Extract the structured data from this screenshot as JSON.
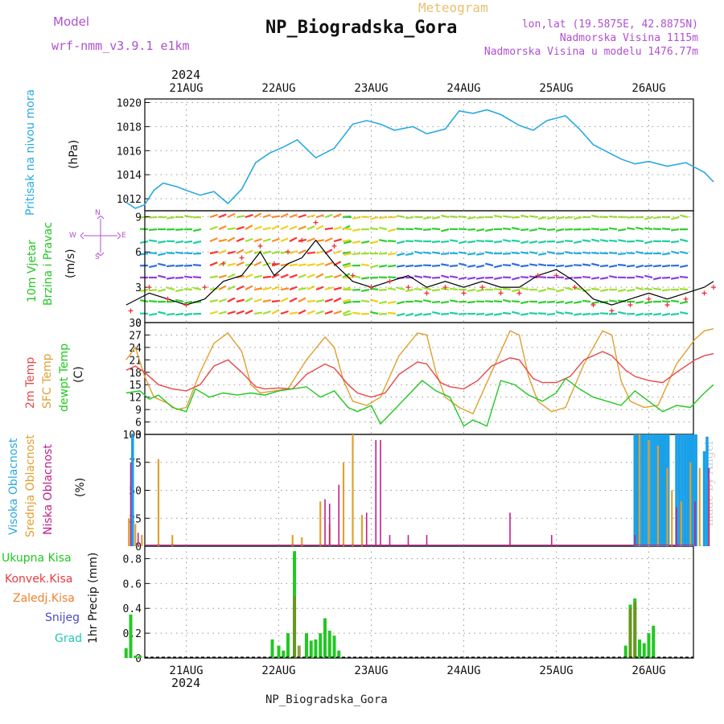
{
  "header": {
    "model_label": "Model",
    "model_name": "wrf-nmm_v3.9.1 e1km",
    "meteogram_label": "Meteogram",
    "station_title": "NP_Biogradska_Gora",
    "lonlat": "lon,lat (19.5875E, 42.8875N)",
    "elevation": "Nadmorska Visina 1115m",
    "model_elevation": "Nadmorska Visina u modelu 1476.77m",
    "footer_title": "NP_Biogradska_Gora",
    "watermark": "made by Angel",
    "year_top": "2024",
    "year_bottom": "2024"
  },
  "colors": {
    "pressure": "#2aa9e0",
    "temp2m": "#e84848",
    "sfc_temp": "#e0a030",
    "dewpt": "#22c822",
    "high_cloud": "#1aa0e8",
    "mid_cloud": "#e0a030",
    "low_cloud": "#c0208a",
    "total_precip": "#22c822",
    "conv_precip": "#e83c3c",
    "frozen_precip": "#f08030",
    "snow": "#4a4ad0",
    "hail": "#22c8b0",
    "wind_speed_line": "#000000",
    "wind_gust": "#ee3030",
    "wind_dir_label": "#b050d0"
  },
  "days": [
    "21AUG",
    "22AUG",
    "23AUG",
    "24AUG",
    "25AUG",
    "26AUG"
  ],
  "panels": {
    "pressure": {
      "label": "Pritisak na nivou mora",
      "unit": "(hPa)",
      "ticks": [
        "1012",
        "1014",
        "1016",
        "1018",
        "1020"
      ]
    },
    "wind": {
      "label1": "10m Vjetar",
      "label2": "Brzina i Pravac",
      "unit": "(m/s)",
      "ticks": [
        "0",
        "3",
        "6",
        "9"
      ],
      "compass_n": "N",
      "compass_w": "W",
      "compass_e": "E",
      "compass_s": "S"
    },
    "temp": {
      "label1": "2m Temp",
      "label2": "SFC Temp",
      "label3": "dewpt Temp",
      "unit": "(C)",
      "ticks": [
        "3",
        "6",
        "9",
        "12",
        "15",
        "18",
        "21",
        "24",
        "27",
        "30"
      ]
    },
    "cloud": {
      "label1": "Visoka Oblacnost",
      "label2": "Srednja Oblacnost",
      "label3": "Niska Oblacnost",
      "unit": "(%)",
      "ticks": [
        "0",
        "25",
        "50",
        "75",
        "100"
      ]
    },
    "precip": {
      "legend_total": "Ukupna Kisa",
      "legend_conv": "Konvek.Kisa",
      "legend_frozen": "Zaledj.Kisa",
      "legend_snow": "Snijeg",
      "legend_hail": "Grad",
      "unit": "1hr Precip (mm)",
      "ticks": [
        "0",
        "0.2",
        "0.4",
        "0.6",
        "0.8"
      ]
    }
  },
  "chart_data": [
    {
      "type": "line",
      "title": "",
      "ylabel": "Pritisak na nivou mora (hPa)",
      "x_unit": "day offset from 21AUG 00UTC",
      "ylim": [
        1011,
        1020.3
      ],
      "series": [
        {
          "name": "Pritisak na nivou mora",
          "x": [
            -0.65,
            -0.55,
            -0.45,
            -0.35,
            -0.25,
            -0.1,
            0.0,
            0.15,
            0.3,
            0.45,
            0.6,
            0.75,
            0.9,
            1.05,
            1.2,
            1.4,
            1.6,
            1.8,
            1.95,
            2.1,
            2.25,
            2.45,
            2.6,
            2.8,
            2.95,
            3.1,
            3.25,
            3.4,
            3.6,
            3.75,
            3.9,
            4.1,
            4.25,
            4.4,
            4.55,
            4.7,
            4.85,
            5.0,
            5.2,
            5.4,
            5.6,
            5.7
          ],
          "values": [
            1011.7,
            1011.2,
            1011.5,
            1012.7,
            1013.3,
            1013.0,
            1012.7,
            1012.3,
            1012.6,
            1011.6,
            1012.8,
            1015.0,
            1015.8,
            1016.3,
            1016.9,
            1015.4,
            1016.2,
            1018.2,
            1018.5,
            1018.2,
            1017.7,
            1018.0,
            1017.4,
            1017.8,
            1019.3,
            1019.1,
            1019.4,
            1019.0,
            1018.1,
            1017.7,
            1018.5,
            1018.9,
            1017.8,
            1016.5,
            1015.9,
            1015.3,
            1014.9,
            1015.1,
            1014.7,
            1015.0,
            1014.2,
            1013.4
          ]
        }
      ]
    },
    {
      "type": "line",
      "title": "",
      "ylabel": "10m Vjetar Brzina i Pravac (m/s)",
      "ylim": [
        0,
        9.5
      ],
      "series": [
        {
          "name": "speed",
          "x": [
            -0.65,
            -0.4,
            -0.2,
            0.0,
            0.2,
            0.4,
            0.6,
            0.8,
            0.95,
            1.1,
            1.25,
            1.4,
            1.6,
            1.8,
            2.0,
            2.2,
            2.4,
            2.6,
            2.8,
            3.0,
            3.2,
            3.4,
            3.6,
            3.8,
            4.0,
            4.2,
            4.4,
            4.6,
            4.8,
            5.0,
            5.2,
            5.4,
            5.6,
            5.7
          ],
          "values": [
            1.5,
            2.5,
            2.0,
            1.5,
            2.0,
            3.5,
            4.0,
            6.0,
            4.0,
            5.0,
            5.5,
            7.0,
            5.0,
            3.5,
            3.0,
            3.5,
            4.0,
            3.0,
            3.5,
            3.0,
            3.5,
            3.0,
            3.0,
            4.0,
            4.5,
            3.5,
            2.0,
            1.5,
            2.0,
            2.5,
            2.0,
            2.5,
            3.0,
            3.5
          ]
        },
        {
          "name": "gust",
          "x": [
            -0.6,
            -0.4,
            -0.2,
            0.0,
            0.2,
            0.4,
            0.6,
            0.8,
            0.95,
            1.1,
            1.25,
            1.4,
            1.6,
            1.8,
            2.0,
            2.2,
            2.4,
            2.6,
            2.8,
            3.0,
            3.2,
            3.4,
            3.6,
            3.8,
            4.0,
            4.2,
            4.4,
            4.6,
            4.8,
            5.0,
            5.2,
            5.4,
            5.6,
            5.7
          ],
          "values": [
            1.0,
            3.0,
            2.0,
            1.5,
            3.0,
            5.0,
            5.5,
            6.5,
            5.0,
            6.0,
            7.0,
            8.5,
            6.5,
            4.0,
            3.0,
            3.5,
            3.0,
            2.5,
            3.0,
            2.5,
            3.0,
            2.5,
            2.5,
            4.0,
            4.0,
            3.0,
            1.5,
            1.0,
            1.5,
            2.0,
            1.5,
            2.0,
            2.5,
            3.0
          ]
        }
      ]
    },
    {
      "type": "line",
      "title": "",
      "ylabel": "Temp (C)",
      "ylim": [
        3,
        30
      ],
      "series": [
        {
          "name": "2m Temp",
          "x": [
            -0.65,
            -0.55,
            -0.45,
            -0.3,
            -0.15,
            0.0,
            0.15,
            0.3,
            0.45,
            0.6,
            0.75,
            0.85,
            1.0,
            1.15,
            1.3,
            1.5,
            1.6,
            1.75,
            1.85,
            2.0,
            2.15,
            2.3,
            2.5,
            2.6,
            2.75,
            2.85,
            3.0,
            3.15,
            3.3,
            3.5,
            3.6,
            3.75,
            3.85,
            4.0,
            4.15,
            4.3,
            4.5,
            4.6,
            4.75,
            4.85,
            5.0,
            5.15,
            5.3,
            5.5,
            5.6,
            5.7
          ],
          "values": [
            18.5,
            19.5,
            18.0,
            15.0,
            14.0,
            13.5,
            15.0,
            19.5,
            21.0,
            18.0,
            14.5,
            14.0,
            14.2,
            14.0,
            17.5,
            20.0,
            19.0,
            15.0,
            13.0,
            12.0,
            13.0,
            17.5,
            20.5,
            20.0,
            15.5,
            14.5,
            14.0,
            16.0,
            19.5,
            21.5,
            21.0,
            16.5,
            15.5,
            15.5,
            17.0,
            21.0,
            23.0,
            22.0,
            18.5,
            17.0,
            16.0,
            15.5,
            18.0,
            21.0,
            22.0,
            22.5
          ]
        },
        {
          "name": "SFC Temp",
          "x": [
            -0.65,
            -0.55,
            -0.45,
            -0.35,
            -0.2,
            -0.1,
            0.0,
            0.15,
            0.3,
            0.45,
            0.6,
            0.7,
            0.8,
            0.95,
            1.1,
            1.3,
            1.5,
            1.6,
            1.7,
            1.8,
            1.95,
            2.1,
            2.3,
            2.5,
            2.6,
            2.7,
            2.8,
            2.95,
            3.1,
            3.3,
            3.5,
            3.6,
            3.7,
            3.8,
            3.95,
            4.1,
            4.3,
            4.5,
            4.6,
            4.7,
            4.8,
            4.95,
            5.1,
            5.3,
            5.5,
            5.6,
            5.7
          ],
          "values": [
            21.0,
            24.0,
            17.0,
            12.0,
            10.5,
            9.0,
            9.5,
            18.0,
            25.0,
            27.5,
            23.0,
            15.0,
            13.0,
            13.5,
            14.0,
            21.0,
            26.5,
            24.0,
            16.0,
            11.0,
            10.0,
            12.0,
            22.0,
            27.5,
            27.0,
            18.0,
            12.0,
            9.5,
            8.0,
            18.0,
            28.0,
            27.0,
            17.0,
            11.0,
            8.5,
            9.5,
            20.0,
            28.0,
            27.0,
            16.0,
            11.0,
            9.5,
            10.0,
            20.0,
            26.0,
            28.0,
            28.5
          ]
        },
        {
          "name": "dewpt Temp",
          "x": [
            -0.65,
            -0.5,
            -0.4,
            -0.3,
            -0.15,
            0.0,
            0.1,
            0.25,
            0.4,
            0.55,
            0.7,
            0.85,
            1.0,
            1.15,
            1.3,
            1.45,
            1.6,
            1.75,
            1.85,
            2.0,
            2.1,
            2.25,
            2.4,
            2.55,
            2.7,
            2.85,
            3.0,
            3.1,
            3.25,
            3.4,
            3.55,
            3.7,
            3.85,
            4.0,
            4.1,
            4.25,
            4.4,
            4.55,
            4.7,
            4.85,
            5.0,
            5.15,
            5.3,
            5.45,
            5.6,
            5.7
          ],
          "values": [
            13.0,
            13.5,
            11.5,
            12.5,
            9.5,
            8.5,
            14.0,
            12.0,
            13.0,
            12.5,
            13.0,
            12.5,
            13.5,
            14.0,
            14.5,
            12.0,
            13.5,
            9.5,
            8.5,
            10.0,
            5.5,
            9.0,
            12.5,
            16.0,
            13.5,
            12.0,
            5.0,
            6.5,
            5.0,
            16.0,
            15.0,
            12.5,
            11.0,
            13.0,
            16.5,
            14.0,
            12.0,
            11.0,
            10.0,
            13.5,
            11.0,
            8.5,
            10.0,
            9.5,
            13.0,
            15.0
          ]
        }
      ]
    },
    {
      "type": "bar",
      "title": "",
      "ylabel": "Oblacnost (%)",
      "ylim": [
        0,
        100
      ],
      "series": [
        {
          "name": "Visoka Oblacnost",
          "x": [
            -0.58,
            4.85,
            4.88,
            4.91,
            4.94,
            4.97,
            5.0,
            5.03,
            5.06,
            5.09,
            5.12,
            5.15,
            5.18,
            5.21,
            5.3,
            5.33,
            5.36,
            5.39,
            5.42,
            5.45,
            5.48,
            5.51,
            5.6,
            5.63
          ],
          "values": [
            100,
            100,
            100,
            100,
            100,
            100,
            100,
            100,
            100,
            100,
            100,
            100,
            100,
            100,
            100,
            100,
            100,
            100,
            100,
            100,
            100,
            100,
            85,
            98
          ]
        },
        {
          "name": "Srednja Oblacnost",
          "x": [
            -0.62,
            -0.55,
            -0.48,
            -0.3,
            -0.15,
            1.15,
            1.25,
            1.45,
            1.55,
            1.7,
            1.8,
            1.9,
            4.9,
            5.0,
            5.1,
            5.2,
            5.25,
            5.35,
            5.45,
            5.55,
            5.65
          ],
          "values": [
            25,
            20,
            10,
            78,
            10,
            10,
            8,
            40,
            20,
            75,
            100,
            28,
            100,
            95,
            90,
            70,
            50,
            40,
            75,
            70,
            60
          ]
        },
        {
          "name": "Niska Oblacnost",
          "x": [
            -0.6,
            -0.52,
            1.5,
            1.55,
            1.65,
            1.95,
            2.05,
            2.1,
            2.2,
            2.4,
            2.6,
            3.5,
            3.95,
            4.85,
            5.3,
            5.5,
            5.65,
            5.95,
            6.0
          ],
          "values": [
            75,
            12,
            42,
            38,
            55,
            30,
            95,
            95,
            10,
            10,
            10,
            30,
            10,
            10,
            35,
            40,
            70,
            10,
            10
          ]
        }
      ]
    },
    {
      "type": "bar",
      "title": "",
      "ylabel": "1hr Precip (mm)",
      "ylim": [
        0,
        0.9
      ],
      "series": [
        {
          "name": "Ukupna Kisa",
          "x": [
            -0.65,
            -0.6,
            -0.55,
            -0.5,
            0.93,
            1.0,
            1.05,
            1.1,
            1.17,
            1.22,
            1.3,
            1.35,
            1.4,
            1.45,
            1.5,
            1.55,
            1.6,
            1.65,
            1.7,
            1.75,
            4.75,
            4.8,
            4.85,
            4.9,
            4.95,
            5.0,
            5.05
          ],
          "values": [
            0.08,
            0.35,
            0.02,
            0.02,
            0.15,
            0.1,
            0.06,
            0.2,
            0.86,
            0.0,
            0.2,
            0.14,
            0.15,
            0.2,
            0.32,
            0.22,
            0.18,
            0.06,
            0.0,
            0.0,
            0.1,
            0.43,
            0.48,
            0.15,
            0.12,
            0.2,
            0.26
          ]
        },
        {
          "name": "Konvek.Kisa",
          "x": [
            1.17,
            1.22,
            4.8,
            4.85
          ],
          "values": [
            0.5,
            0.1,
            0.4,
            0.45
          ]
        }
      ]
    }
  ]
}
